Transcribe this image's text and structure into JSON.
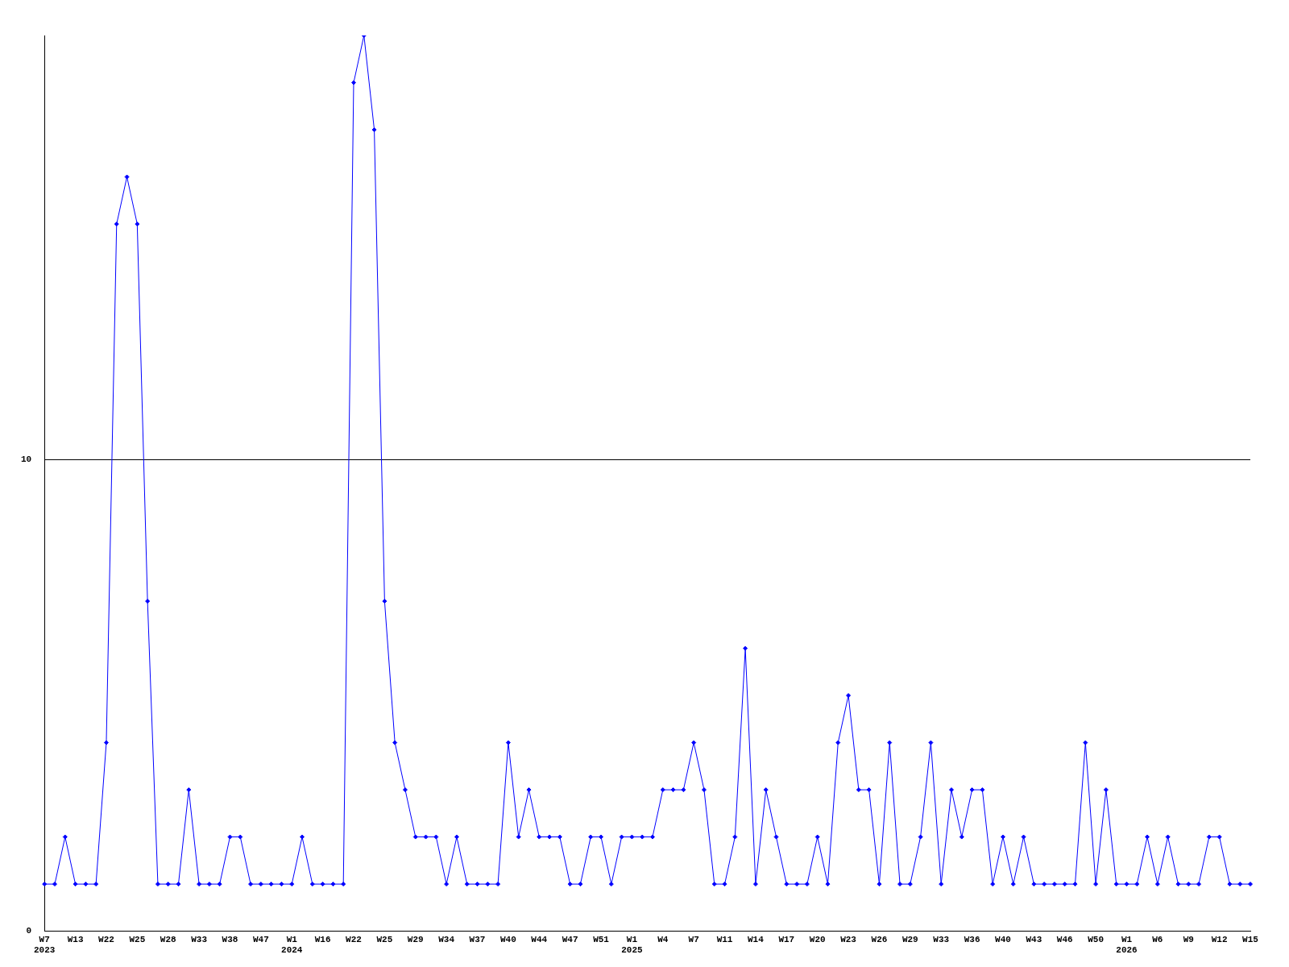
{
  "chart_data": {
    "type": "line",
    "categories": [
      "W7\n2023",
      null,
      null,
      "W13",
      null,
      null,
      "W22",
      null,
      null,
      "W25",
      null,
      null,
      "W28",
      null,
      null,
      "W33",
      null,
      null,
      "W38",
      null,
      null,
      "W47",
      null,
      null,
      "W1\n2024",
      null,
      null,
      "W16",
      null,
      null,
      "W22",
      null,
      null,
      "W25",
      null,
      null,
      "W29",
      null,
      null,
      "W34",
      null,
      null,
      "W37",
      null,
      null,
      "W40",
      null,
      null,
      "W44",
      null,
      null,
      "W47",
      null,
      null,
      "W51",
      null,
      null,
      "W1\n2025",
      null,
      null,
      "W4",
      null,
      null,
      "W7",
      null,
      null,
      "W11",
      null,
      null,
      "W14",
      null,
      null,
      "W17",
      null,
      null,
      "W20",
      null,
      null,
      "W23",
      null,
      null,
      "W26",
      null,
      null,
      "W29",
      null,
      null,
      "W33",
      null,
      null,
      "W36",
      null,
      null,
      "W40",
      null,
      null,
      "W43",
      null,
      null,
      "W46",
      null,
      null,
      "W50",
      null,
      null,
      "W1\n2026",
      null,
      null,
      "W6",
      null,
      null,
      "W9",
      null,
      null,
      "W12",
      null,
      null,
      "W15"
    ],
    "series": [
      {
        "color": "#0000ff",
        "values": [
          1,
          1,
          2,
          1,
          1,
          1,
          4,
          15,
          16,
          15,
          7,
          1,
          1,
          1,
          3,
          1,
          1,
          1,
          2,
          2,
          1,
          1,
          1,
          1,
          1,
          2,
          1,
          1,
          1,
          1,
          18,
          19,
          17,
          7,
          4,
          3,
          2,
          2,
          2,
          1,
          2,
          1,
          1,
          1,
          1,
          4,
          2,
          3,
          2,
          2,
          2,
          1,
          1,
          2,
          2,
          1,
          2,
          2,
          2,
          2,
          3,
          3,
          3,
          4,
          3,
          1,
          1,
          2,
          6,
          1,
          3,
          2,
          1,
          1,
          1,
          2,
          1,
          4,
          5,
          3,
          3,
          1,
          4,
          1,
          1,
          2,
          4,
          1,
          3,
          2,
          3,
          3,
          1,
          2,
          1,
          2,
          1,
          1,
          1,
          1,
          1,
          4,
          1,
          3,
          1,
          1,
          1,
          2,
          1,
          2,
          1,
          1,
          1,
          2,
          2,
          1,
          1,
          1
        ]
      }
    ],
    "ylim": [
      0,
      19
    ],
    "yticks": [
      0,
      10
    ],
    "grid": "y",
    "legend": false,
    "marker": "diamond",
    "line_style": "solid"
  }
}
